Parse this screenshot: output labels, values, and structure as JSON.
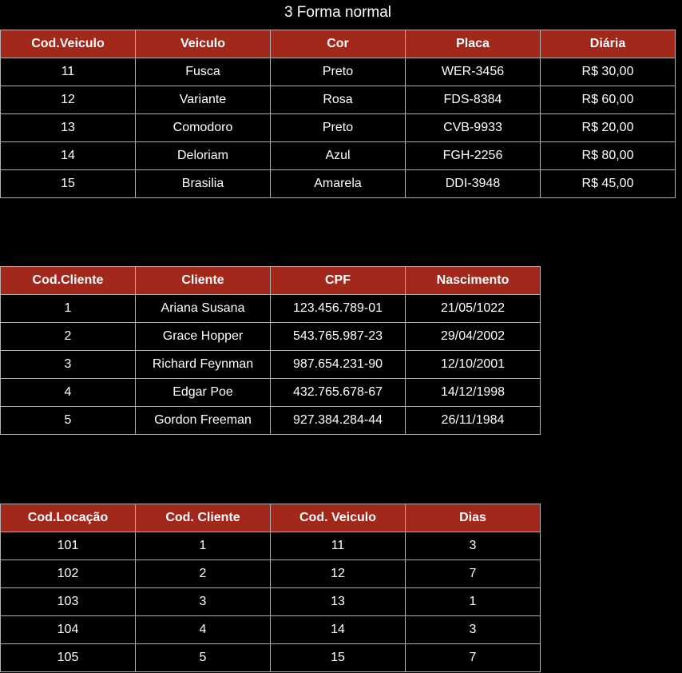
{
  "title": "3 Forma normal",
  "tables": [
    {
      "id": "veiculos",
      "headers": [
        "Cod.Veiculo",
        "Veiculo",
        "Cor",
        "Placa",
        "Diária"
      ],
      "rows": [
        [
          "11",
          "Fusca",
          "Preto",
          "WER-3456",
          "R$ 30,00"
        ],
        [
          "12",
          "Variante",
          "Rosa",
          "FDS-8384",
          "R$ 60,00"
        ],
        [
          "13",
          "Comodoro",
          "Preto",
          "CVB-9933",
          "R$ 20,00"
        ],
        [
          "14",
          "Deloriam",
          "Azul",
          "FGH-2256",
          "R$ 80,00"
        ],
        [
          "15",
          "Brasilia",
          "Amarela",
          "DDI-3948",
          "R$ 45,00"
        ]
      ]
    },
    {
      "id": "clientes",
      "headers": [
        "Cod.Cliente",
        "Cliente",
        "CPF",
        "Nascimento"
      ],
      "rows": [
        [
          "1",
          "Ariana Susana",
          "123.456.789-01",
          "21/05/1022"
        ],
        [
          "2",
          "Grace Hopper",
          "543.765.987-23",
          "29/04/2002"
        ],
        [
          "3",
          "Richard Feynman",
          "987.654.231-90",
          "12/10/2001"
        ],
        [
          "4",
          "Edgar Poe",
          "432.765.678-67",
          "14/12/1998"
        ],
        [
          "5",
          "Gordon Freeman",
          "927.384.284-44",
          "26/11/1984"
        ]
      ]
    },
    {
      "id": "locacoes",
      "headers": [
        "Cod.Locação",
        "Cod. Cliente",
        "Cod. Veiculo",
        "Dias"
      ],
      "rows": [
        [
          "101",
          "1",
          "11",
          "3"
        ],
        [
          "102",
          "2",
          "12",
          "7"
        ],
        [
          "103",
          "3",
          "13",
          "1"
        ],
        [
          "104",
          "4",
          "14",
          "3"
        ],
        [
          "105",
          "5",
          "15",
          "7"
        ]
      ]
    }
  ],
  "colors": {
    "header_background": "#a3281c",
    "page_background": "#000000",
    "text": "#ffffff",
    "border": "#b0b0b0"
  }
}
